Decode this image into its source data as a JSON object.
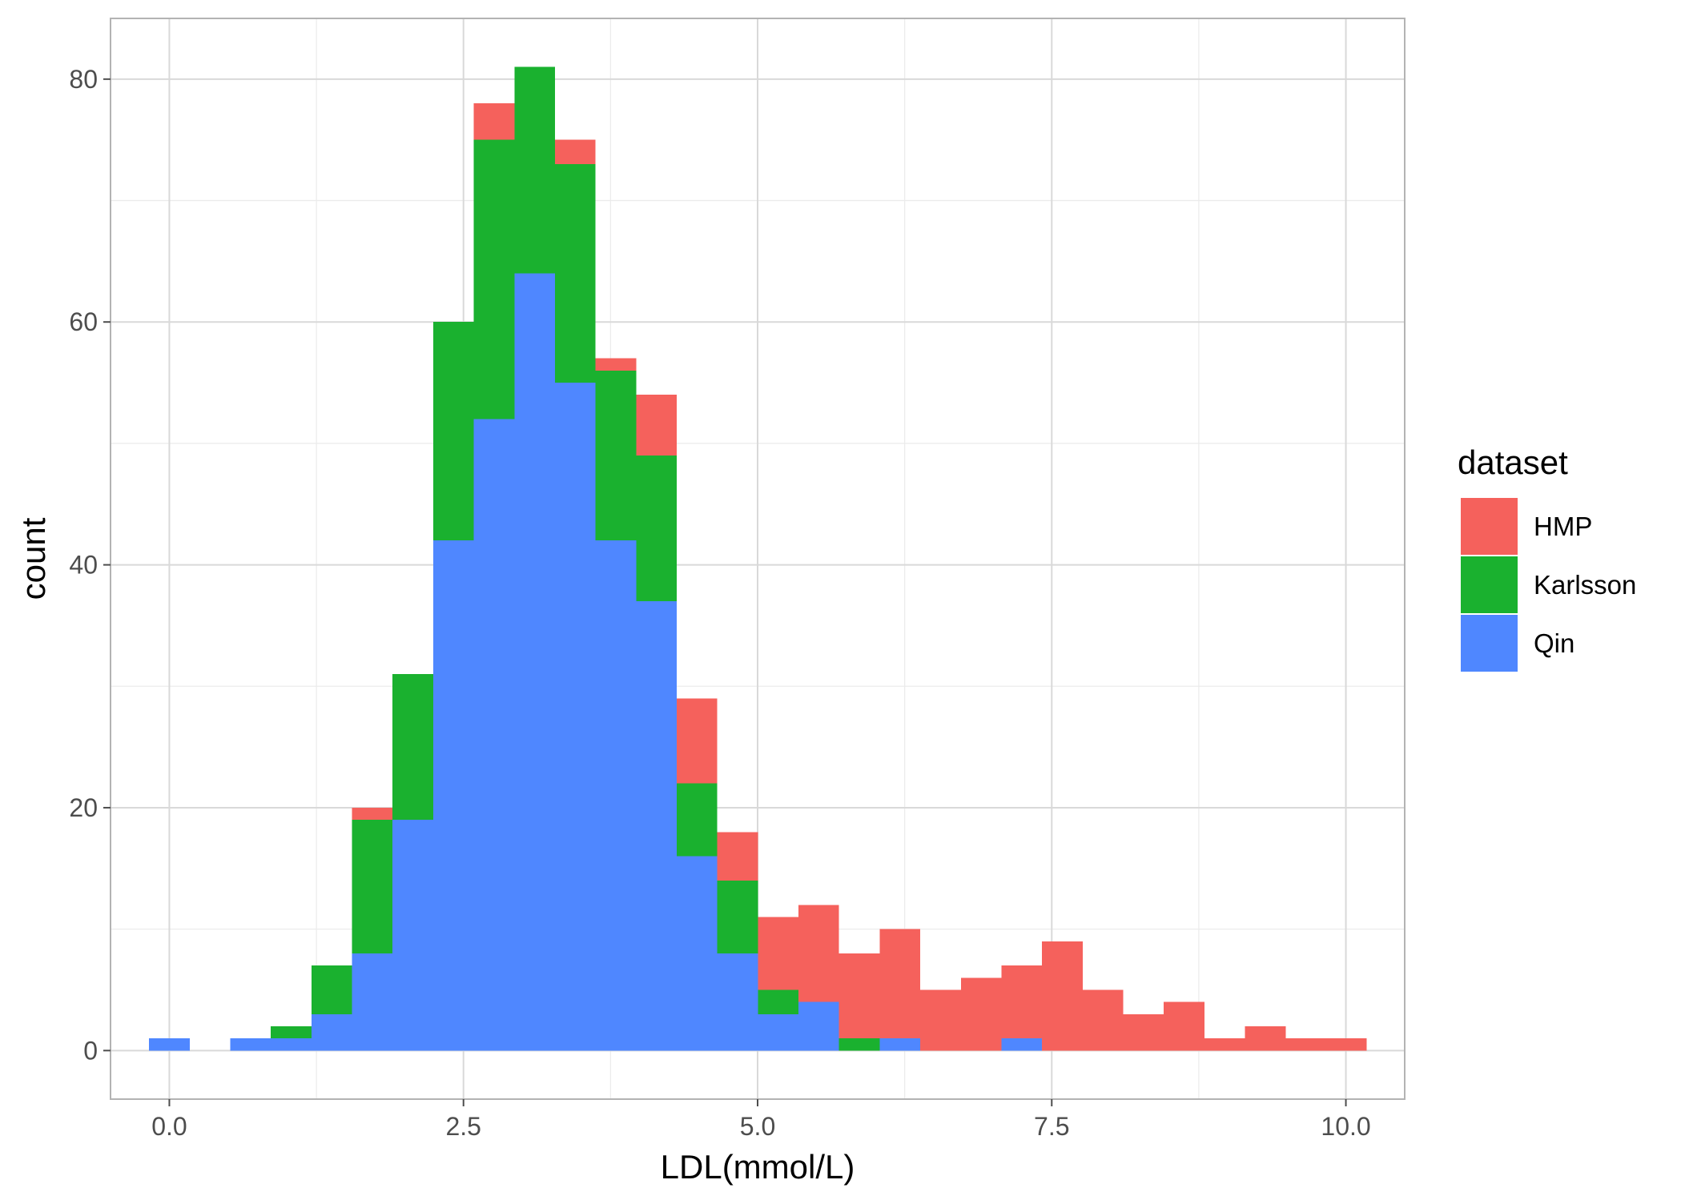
{
  "chart_data": {
    "type": "bar",
    "stacked": true,
    "histogram": true,
    "xlabel": "LDL(mmol/L)",
    "ylabel": "count",
    "xlim": [
      -0.5,
      10.5
    ],
    "ylim": [
      -4,
      85
    ],
    "x_ticks": [
      0.0,
      2.5,
      5.0,
      7.5,
      10.0
    ],
    "x_tick_labels": [
      "0.0",
      "2.5",
      "5.0",
      "7.5",
      "10.0"
    ],
    "y_ticks": [
      0,
      20,
      40,
      60,
      80
    ],
    "y_tick_labels": [
      "0",
      "20",
      "40",
      "60",
      "80"
    ],
    "grid": true,
    "bin_width": 0.345,
    "bin_centers": [
      0.0,
      0.345,
      0.69,
      1.035,
      1.38,
      1.725,
      2.07,
      2.415,
      2.76,
      3.105,
      3.45,
      3.795,
      4.14,
      4.485,
      4.83,
      5.175,
      5.52,
      5.865,
      6.21,
      6.555,
      6.9,
      7.245,
      7.59,
      7.935,
      8.28,
      8.625,
      8.97,
      9.315,
      9.66,
      10.005
    ],
    "series": [
      {
        "name": "Qin",
        "color": "#4f87ff",
        "values": [
          1,
          0,
          1,
          1,
          3,
          8,
          19,
          42,
          52,
          64,
          55,
          42,
          37,
          16,
          8,
          3,
          4,
          0,
          1,
          0,
          0,
          1,
          0,
          0,
          0,
          0,
          0,
          0,
          0,
          0
        ]
      },
      {
        "name": "Karlsson",
        "color": "#1ab12f",
        "values": [
          0,
          0,
          0,
          1,
          4,
          11,
          12,
          18,
          23,
          17,
          18,
          14,
          12,
          6,
          6,
          2,
          0,
          1,
          0,
          0,
          0,
          0,
          0,
          0,
          0,
          0,
          0,
          0,
          0,
          0
        ]
      },
      {
        "name": "HMP",
        "color": "#f5615c",
        "values": [
          0,
          0,
          0,
          0,
          0,
          1,
          0,
          0,
          3,
          0,
          2,
          1,
          5,
          7,
          4,
          6,
          8,
          7,
          9,
          5,
          6,
          6,
          9,
          5,
          3,
          4,
          1,
          2,
          1,
          1
        ]
      }
    ],
    "legend": {
      "title": "dataset",
      "placement": "right",
      "entries": [
        {
          "label": "HMP",
          "color": "#f5615c"
        },
        {
          "label": "Karlsson",
          "color": "#1ab12f"
        },
        {
          "label": "Qin",
          "color": "#4f87ff"
        }
      ]
    }
  }
}
